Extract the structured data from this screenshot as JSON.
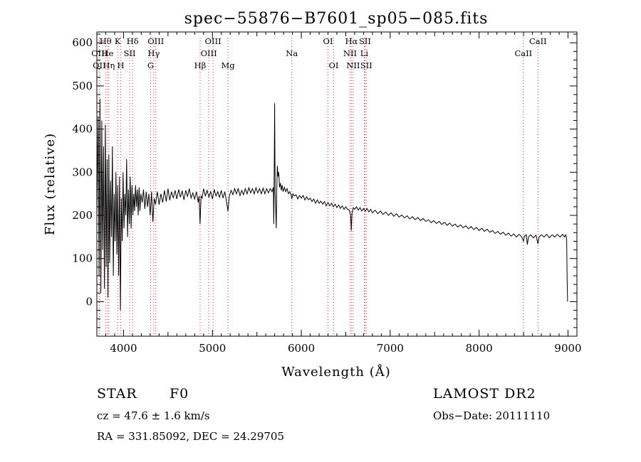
{
  "title": "spec−55876−B7601_sp05−085.fits",
  "info": {
    "class": "STAR",
    "subclass": "F0",
    "survey": "LAMOST DR2",
    "cz": "cz = 47.6 ± 1.6 km/s",
    "obs_date": "Obs−Date: 20111110",
    "radec": "RA = 331.85092, DEC =  24.29705"
  },
  "chart_data": {
    "type": "line",
    "title": "spec−55876−B7601_sp05−085.fits",
    "xlabel": "Wavelength (Å)",
    "ylabel": "Flux (relative)",
    "xlim": [
      3700,
      9100
    ],
    "ylim": [
      -80,
      625
    ],
    "x_ticks": [
      4000,
      5000,
      6000,
      7000,
      8000,
      9000
    ],
    "y_ticks": [
      0,
      100,
      200,
      300,
      400,
      500,
      600
    ],
    "line_color": "#000000",
    "marker_color": "#cc3333",
    "spectrum": [
      [
        3700,
        190
      ],
      [
        3715,
        430
      ],
      [
        3725,
        60
      ],
      [
        3735,
        470
      ],
      [
        3745,
        20
      ],
      [
        3755,
        420
      ],
      [
        3765,
        120
      ],
      [
        3775,
        360
      ],
      [
        3785,
        30
      ],
      [
        3795,
        410
      ],
      [
        3805,
        80
      ],
      [
        3815,
        330
      ],
      [
        3825,
        10
      ],
      [
        3835,
        340
      ],
      [
        3845,
        90
      ],
      [
        3855,
        280
      ],
      [
        3865,
        150
      ],
      [
        3875,
        360
      ],
      [
        3885,
        60
      ],
      [
        3895,
        250
      ],
      [
        3905,
        140
      ],
      [
        3915,
        300
      ],
      [
        3925,
        110
      ],
      [
        3935,
        270
      ],
      [
        3945,
        60
      ],
      [
        3955,
        290
      ],
      [
        3965,
        -20
      ],
      [
        3975,
        240
      ],
      [
        3985,
        140
      ],
      [
        3995,
        300
      ],
      [
        4005,
        170
      ],
      [
        4015,
        250
      ],
      [
        4025,
        200
      ],
      [
        4035,
        330
      ],
      [
        4045,
        150
      ],
      [
        4055,
        260
      ],
      [
        4065,
        180
      ],
      [
        4075,
        290
      ],
      [
        4085,
        170
      ],
      [
        4095,
        270
      ],
      [
        4105,
        200
      ],
      [
        4115,
        250
      ],
      [
        4125,
        210
      ],
      [
        4135,
        270
      ],
      [
        4145,
        220
      ],
      [
        4155,
        260
      ],
      [
        4165,
        200
      ],
      [
        4175,
        265
      ],
      [
        4185,
        210
      ],
      [
        4195,
        250
      ],
      [
        4210,
        230
      ],
      [
        4225,
        260
      ],
      [
        4240,
        215
      ],
      [
        4255,
        255
      ],
      [
        4270,
        220
      ],
      [
        4285,
        250
      ],
      [
        4300,
        200
      ],
      [
        4315,
        255
      ],
      [
        4330,
        185
      ],
      [
        4345,
        240
      ],
      [
        4360,
        225
      ],
      [
        4380,
        255
      ],
      [
        4400,
        225
      ],
      [
        4420,
        250
      ],
      [
        4440,
        230
      ],
      [
        4460,
        258
      ],
      [
        4480,
        232
      ],
      [
        4500,
        262
      ],
      [
        4520,
        235
      ],
      [
        4540,
        255
      ],
      [
        4560,
        240
      ],
      [
        4580,
        258
      ],
      [
        4600,
        238
      ],
      [
        4620,
        260
      ],
      [
        4640,
        242
      ],
      [
        4660,
        257
      ],
      [
        4680,
        236
      ],
      [
        4700,
        258
      ],
      [
        4720,
        244
      ],
      [
        4740,
        262
      ],
      [
        4760,
        240
      ],
      [
        4780,
        252
      ],
      [
        4800,
        238
      ],
      [
        4820,
        255
      ],
      [
        4840,
        230
      ],
      [
        4850,
        245
      ],
      [
        4861,
        180
      ],
      [
        4872,
        245
      ],
      [
        4885,
        240
      ],
      [
        4900,
        262
      ],
      [
        4920,
        245
      ],
      [
        4940,
        258
      ],
      [
        4960,
        242
      ],
      [
        4980,
        255
      ],
      [
        5000,
        238
      ],
      [
        5020,
        260
      ],
      [
        5040,
        245
      ],
      [
        5060,
        255
      ],
      [
        5080,
        242
      ],
      [
        5100,
        258
      ],
      [
        5120,
        240
      ],
      [
        5140,
        255
      ],
      [
        5160,
        230
      ],
      [
        5175,
        210
      ],
      [
        5190,
        245
      ],
      [
        5210,
        258
      ],
      [
        5230,
        248
      ],
      [
        5250,
        262
      ],
      [
        5270,
        250
      ],
      [
        5290,
        262
      ],
      [
        5310,
        246
      ],
      [
        5330,
        258
      ],
      [
        5350,
        248
      ],
      [
        5370,
        262
      ],
      [
        5390,
        250
      ],
      [
        5410,
        264
      ],
      [
        5430,
        252
      ],
      [
        5450,
        262
      ],
      [
        5470,
        250
      ],
      [
        5490,
        264
      ],
      [
        5510,
        252
      ],
      [
        5530,
        262
      ],
      [
        5550,
        250
      ],
      [
        5570,
        263
      ],
      [
        5590,
        250
      ],
      [
        5610,
        262
      ],
      [
        5630,
        252
      ],
      [
        5650,
        262
      ],
      [
        5670,
        255
      ],
      [
        5685,
        265
      ],
      [
        5690,
        180
      ],
      [
        5695,
        300
      ],
      [
        5700,
        460
      ],
      [
        5705,
        250
      ],
      [
        5712,
        215
      ],
      [
        5718,
        170
      ],
      [
        5724,
        260
      ],
      [
        5730,
        315
      ],
      [
        5738,
        290
      ],
      [
        5746,
        300
      ],
      [
        5755,
        265
      ],
      [
        5765,
        275
      ],
      [
        5775,
        258
      ],
      [
        5785,
        270
      ],
      [
        5795,
        255
      ],
      [
        5810,
        265
      ],
      [
        5825,
        255
      ],
      [
        5840,
        262
      ],
      [
        5855,
        250
      ],
      [
        5870,
        255
      ],
      [
        5885,
        248
      ],
      [
        5893,
        238
      ],
      [
        5905,
        250
      ],
      [
        5920,
        245
      ],
      [
        5940,
        248
      ],
      [
        5960,
        238
      ],
      [
        5980,
        246
      ],
      [
        6000,
        240
      ],
      [
        6020,
        246
      ],
      [
        6040,
        236
      ],
      [
        6060,
        243
      ],
      [
        6080,
        236
      ],
      [
        6100,
        240
      ],
      [
        6120,
        232
      ],
      [
        6140,
        238
      ],
      [
        6160,
        228
      ],
      [
        6180,
        236
      ],
      [
        6200,
        228
      ],
      [
        6220,
        233
      ],
      [
        6240,
        226
      ],
      [
        6260,
        232
      ],
      [
        6280,
        222
      ],
      [
        6300,
        230
      ],
      [
        6320,
        222
      ],
      [
        6340,
        228
      ],
      [
        6360,
        220
      ],
      [
        6380,
        226
      ],
      [
        6400,
        218
      ],
      [
        6420,
        224
      ],
      [
        6440,
        216
      ],
      [
        6460,
        222
      ],
      [
        6480,
        214
      ],
      [
        6500,
        220
      ],
      [
        6520,
        214
      ],
      [
        6540,
        212
      ],
      [
        6555,
        200
      ],
      [
        6563,
        165
      ],
      [
        6570,
        205
      ],
      [
        6585,
        218
      ],
      [
        6600,
        214
      ],
      [
        6620,
        220
      ],
      [
        6640,
        212
      ],
      [
        6660,
        218
      ],
      [
        6680,
        210
      ],
      [
        6700,
        216
      ],
      [
        6720,
        210
      ],
      [
        6740,
        216
      ],
      [
        6760,
        208
      ],
      [
        6780,
        214
      ],
      [
        6800,
        206
      ],
      [
        6830,
        212
      ],
      [
        6860,
        204
      ],
      [
        6890,
        210
      ],
      [
        6920,
        202
      ],
      [
        6950,
        208
      ],
      [
        6980,
        200
      ],
      [
        7010,
        206
      ],
      [
        7040,
        198
      ],
      [
        7070,
        204
      ],
      [
        7100,
        196
      ],
      [
        7130,
        201
      ],
      [
        7160,
        194
      ],
      [
        7190,
        199
      ],
      [
        7220,
        192
      ],
      [
        7250,
        197
      ],
      [
        7280,
        190
      ],
      [
        7310,
        195
      ],
      [
        7340,
        188
      ],
      [
        7370,
        193
      ],
      [
        7400,
        186
      ],
      [
        7430,
        190
      ],
      [
        7460,
        183
      ],
      [
        7490,
        188
      ],
      [
        7520,
        181
      ],
      [
        7550,
        186
      ],
      [
        7580,
        179
      ],
      [
        7610,
        184
      ],
      [
        7640,
        177
      ],
      [
        7670,
        182
      ],
      [
        7700,
        175
      ],
      [
        7730,
        180
      ],
      [
        7760,
        173
      ],
      [
        7790,
        178
      ],
      [
        7820,
        171
      ],
      [
        7850,
        176
      ],
      [
        7880,
        169
      ],
      [
        7910,
        174
      ],
      [
        7940,
        167
      ],
      [
        7970,
        172
      ],
      [
        8000,
        165
      ],
      [
        8030,
        170
      ],
      [
        8060,
        163
      ],
      [
        8090,
        168
      ],
      [
        8120,
        161
      ],
      [
        8150,
        165
      ],
      [
        8180,
        158
      ],
      [
        8210,
        163
      ],
      [
        8240,
        156
      ],
      [
        8270,
        161
      ],
      [
        8300,
        154
      ],
      [
        8330,
        159
      ],
      [
        8360,
        152
      ],
      [
        8390,
        157
      ],
      [
        8420,
        150
      ],
      [
        8450,
        156
      ],
      [
        8480,
        150
      ],
      [
        8498,
        140
      ],
      [
        8510,
        152
      ],
      [
        8530,
        155
      ],
      [
        8542,
        132
      ],
      [
        8555,
        150
      ],
      [
        8580,
        155
      ],
      [
        8610,
        148
      ],
      [
        8640,
        154
      ],
      [
        8662,
        134
      ],
      [
        8675,
        150
      ],
      [
        8700,
        155
      ],
      [
        8730,
        150
      ],
      [
        8760,
        156
      ],
      [
        8790,
        148
      ],
      [
        8820,
        155
      ],
      [
        8850,
        150
      ],
      [
        8880,
        156
      ],
      [
        8910,
        150
      ],
      [
        8940,
        156
      ],
      [
        8960,
        150
      ],
      [
        8975,
        155
      ],
      [
        8985,
        145
      ],
      [
        8990,
        50
      ],
      [
        8995,
        0
      ]
    ],
    "line_markers": [
      {
        "label": "OII",
        "wavelength": 3727,
        "row": 2
      },
      {
        "label": "OIII",
        "wavelength": 3730,
        "row": 1
      },
      {
        "label": "Hθ",
        "wavelength": 3798,
        "row": 0
      },
      {
        "label": "He",
        "wavelength": 3820,
        "row": 1
      },
      {
        "label": "Hη",
        "wavelength": 3835,
        "row": 2
      },
      {
        "label": "K",
        "wavelength": 3934,
        "row": 0
      },
      {
        "label": "H",
        "wavelength": 3969,
        "row": 2
      },
      {
        "label": "SII",
        "wavelength": 4069,
        "row": 1
      },
      {
        "label": "Hδ",
        "wavelength": 4102,
        "row": 0
      },
      {
        "label": "G",
        "wavelength": 4305,
        "row": 2
      },
      {
        "label": "Hγ",
        "wavelength": 4340,
        "row": 1
      },
      {
        "label": "OIII",
        "wavelength": 4363,
        "row": 0
      },
      {
        "label": "Hβ",
        "wavelength": 4861,
        "row": 2
      },
      {
        "label": "OIII",
        "wavelength": 4959,
        "row": 1
      },
      {
        "label": "OIII",
        "wavelength": 5007,
        "row": 0
      },
      {
        "label": "Mg",
        "wavelength": 5175,
        "row": 2
      },
      {
        "label": "Na",
        "wavelength": 5893,
        "row": 1
      },
      {
        "label": "OI",
        "wavelength": 6300,
        "row": 0
      },
      {
        "label": "OI",
        "wavelength": 6364,
        "row": 2
      },
      {
        "label": "NII",
        "wavelength": 6548,
        "row": 1
      },
      {
        "label": "Hα",
        "wavelength": 6563,
        "row": 0
      },
      {
        "label": "NII",
        "wavelength": 6583,
        "row": 2
      },
      {
        "label": "SII",
        "wavelength": 6716,
        "row": 0
      },
      {
        "label": "Li",
        "wavelength": 6708,
        "row": 1
      },
      {
        "label": "SII",
        "wavelength": 6731,
        "row": 2
      },
      {
        "label": "CaII",
        "wavelength": 8498,
        "row": 1
      },
      {
        "label": "CaII",
        "wavelength": 8662,
        "row": 0
      }
    ]
  }
}
